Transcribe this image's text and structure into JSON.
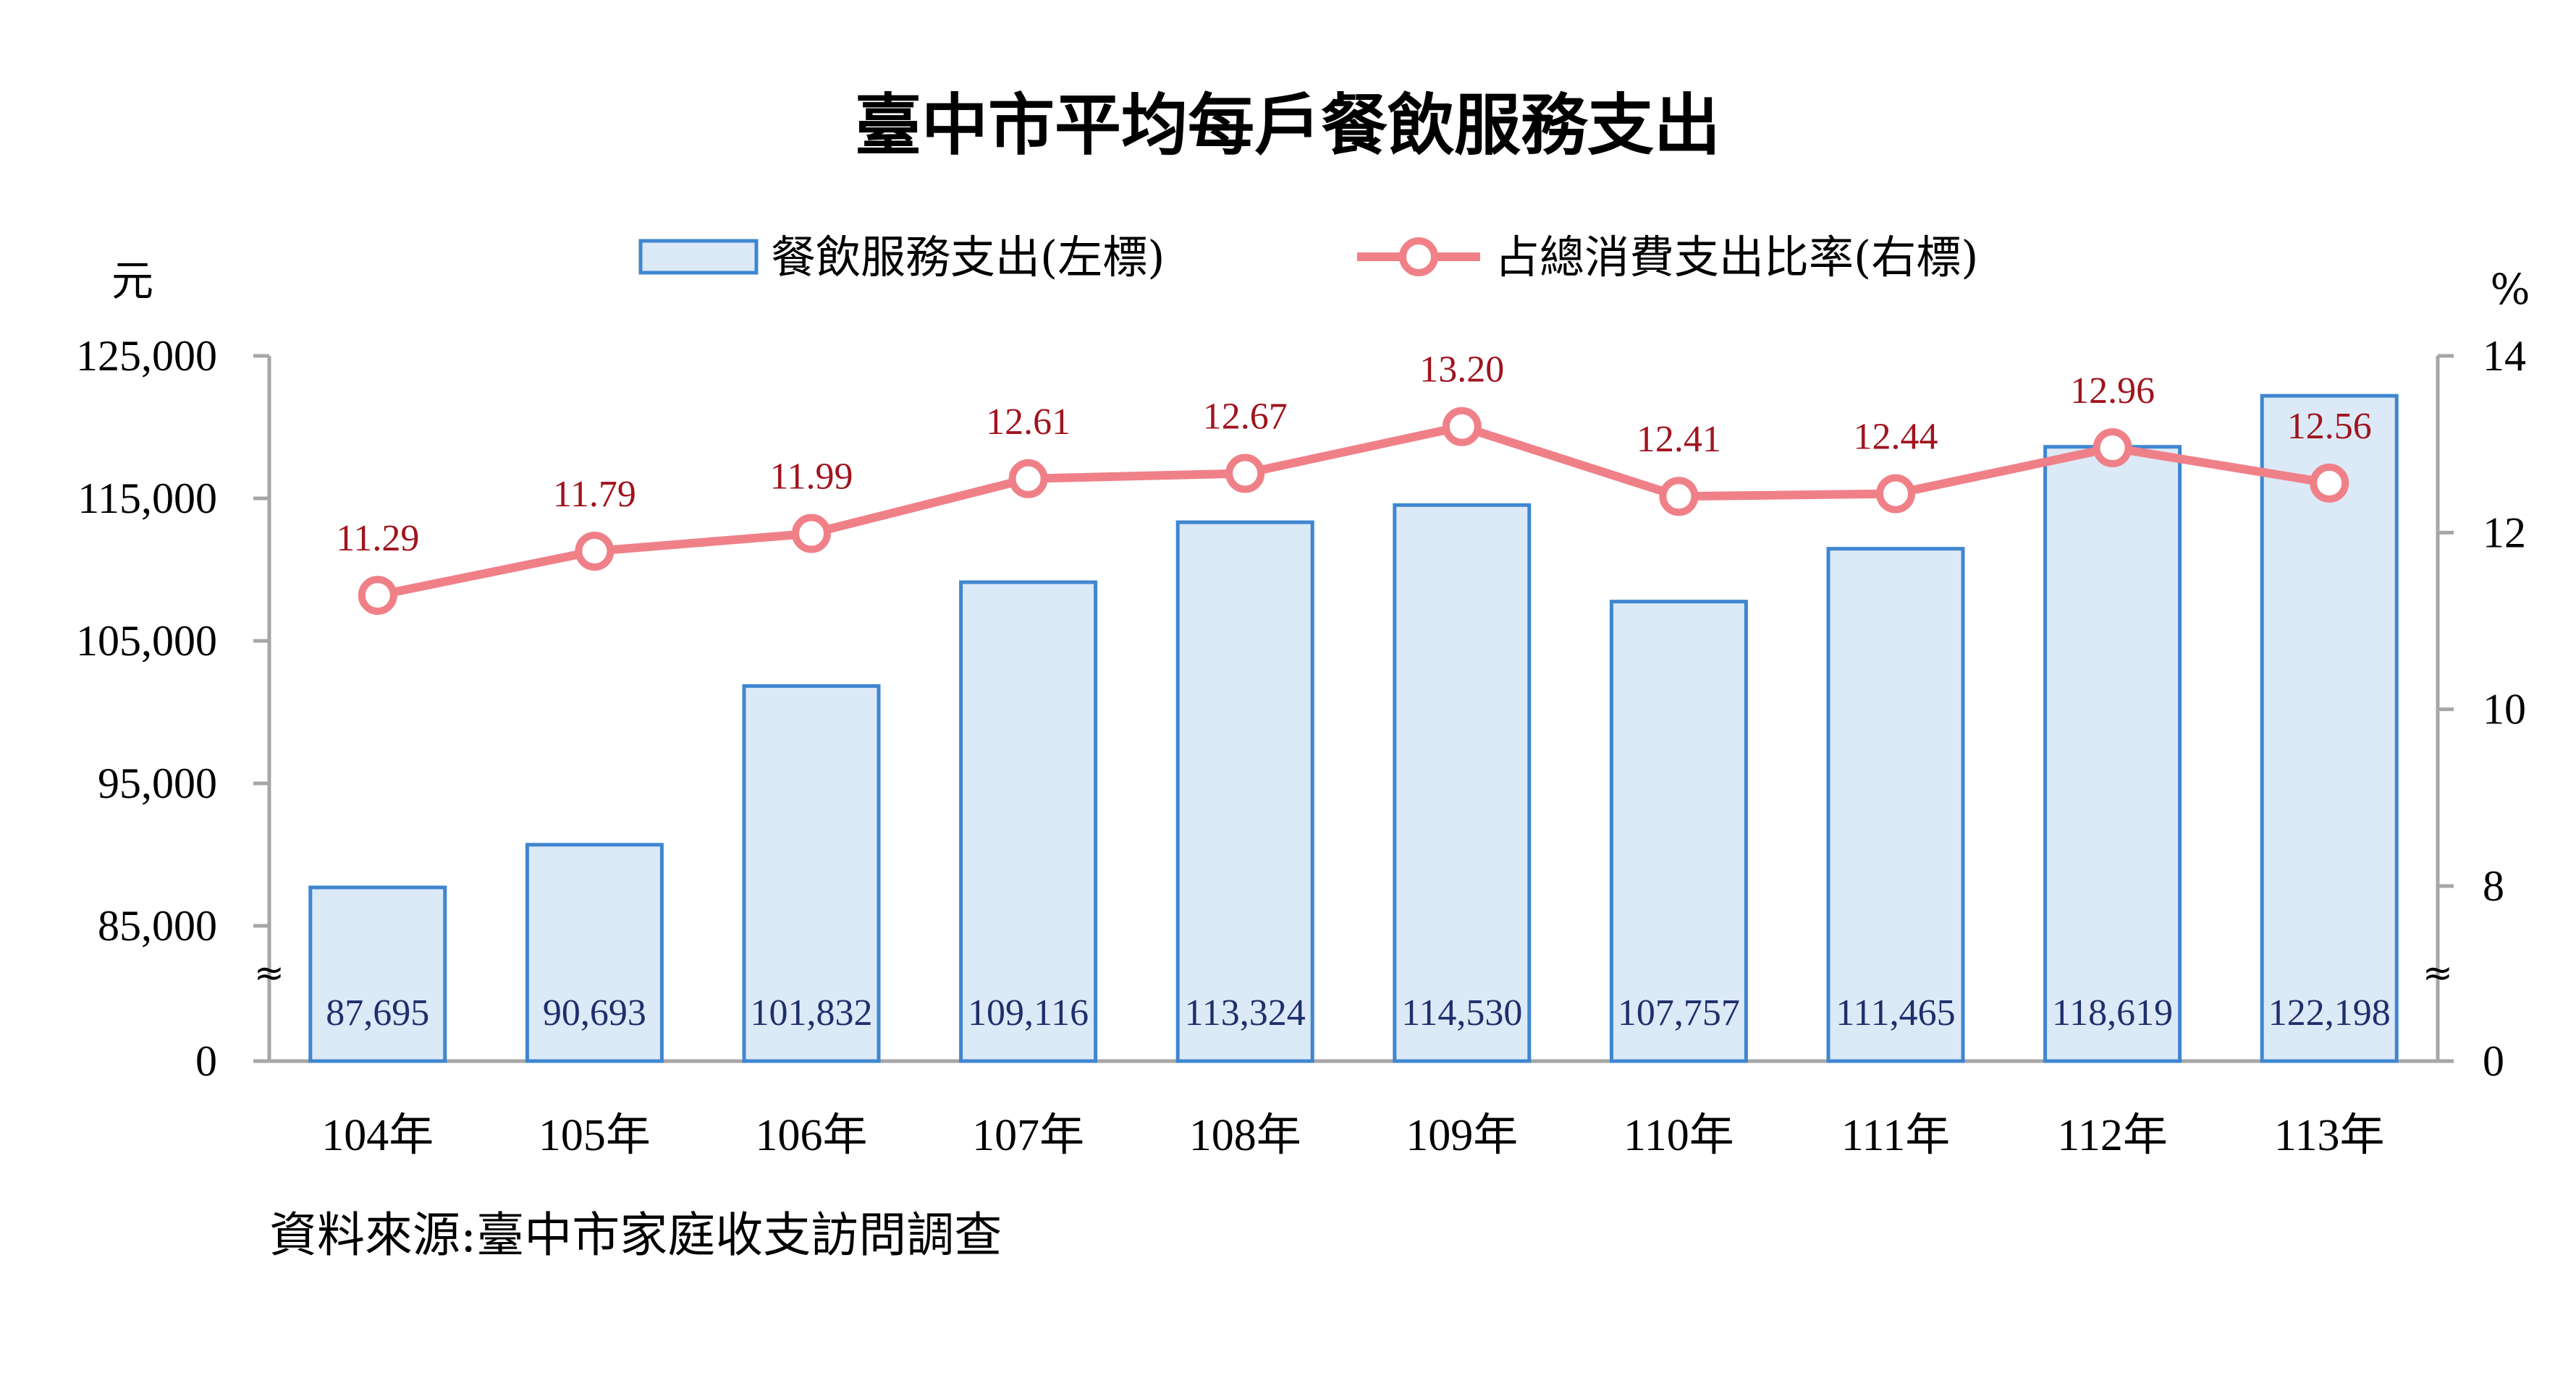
{
  "chart_data": {
    "type": "bar",
    "title": "臺中市平均每戶餐飲服務支出",
    "categories": [
      "104年",
      "105年",
      "106年",
      "107年",
      "108年",
      "109年",
      "110年",
      "111年",
      "112年",
      "113年"
    ],
    "series": [
      {
        "name": "餐飲服務支出(左標)",
        "type": "bar",
        "axis": "left",
        "values": [
          87695,
          90693,
          101832,
          109116,
          113324,
          114530,
          107757,
          111465,
          118619,
          122198
        ],
        "value_labels": [
          "87,695",
          "90,693",
          "101,832",
          "109,116",
          "113,324",
          "114,530",
          "107,757",
          "111,465",
          "118,619",
          "122,198"
        ]
      },
      {
        "name": "占總消費支出比率(右標)",
        "type": "line",
        "axis": "right",
        "values": [
          11.29,
          11.79,
          11.99,
          12.61,
          12.67,
          13.2,
          12.41,
          12.44,
          12.96,
          12.56
        ],
        "value_labels": [
          "11.29",
          "11.79",
          "11.99",
          "12.61",
          "12.67",
          "13.20",
          "12.41",
          "12.44",
          "12.96",
          "12.56"
        ]
      }
    ],
    "y_left": {
      "unit": "元",
      "ticks": [
        0,
        85000,
        95000,
        105000,
        115000,
        125000
      ],
      "tick_labels": [
        "0",
        "85,000",
        "95,000",
        "105,000",
        "115,000",
        "125,000"
      ],
      "broken_axis": true,
      "break_range": [
        0,
        80000
      ],
      "ylim": [
        0,
        125000
      ]
    },
    "y_right": {
      "unit": "%",
      "ticks": [
        0,
        8,
        10,
        12,
        14
      ],
      "tick_labels": [
        "0",
        "8",
        "10",
        "12",
        "14"
      ],
      "broken_axis": true,
      "break_range": [
        0,
        6
      ],
      "ylim": [
        0,
        14
      ]
    },
    "break_symbol": "≈",
    "legend_position": "top-center",
    "grid": false,
    "source": "資料來源:臺中市家庭收支訪問調查",
    "colors": {
      "bar_fill": "#dce9f7",
      "bar_stroke": "#3f86d0",
      "line": "#f08088",
      "marker_fill": "#ffffff",
      "bar_label": "#1f2f6b",
      "point_label": "#a0141e",
      "axis": "#a6a6a6"
    }
  }
}
